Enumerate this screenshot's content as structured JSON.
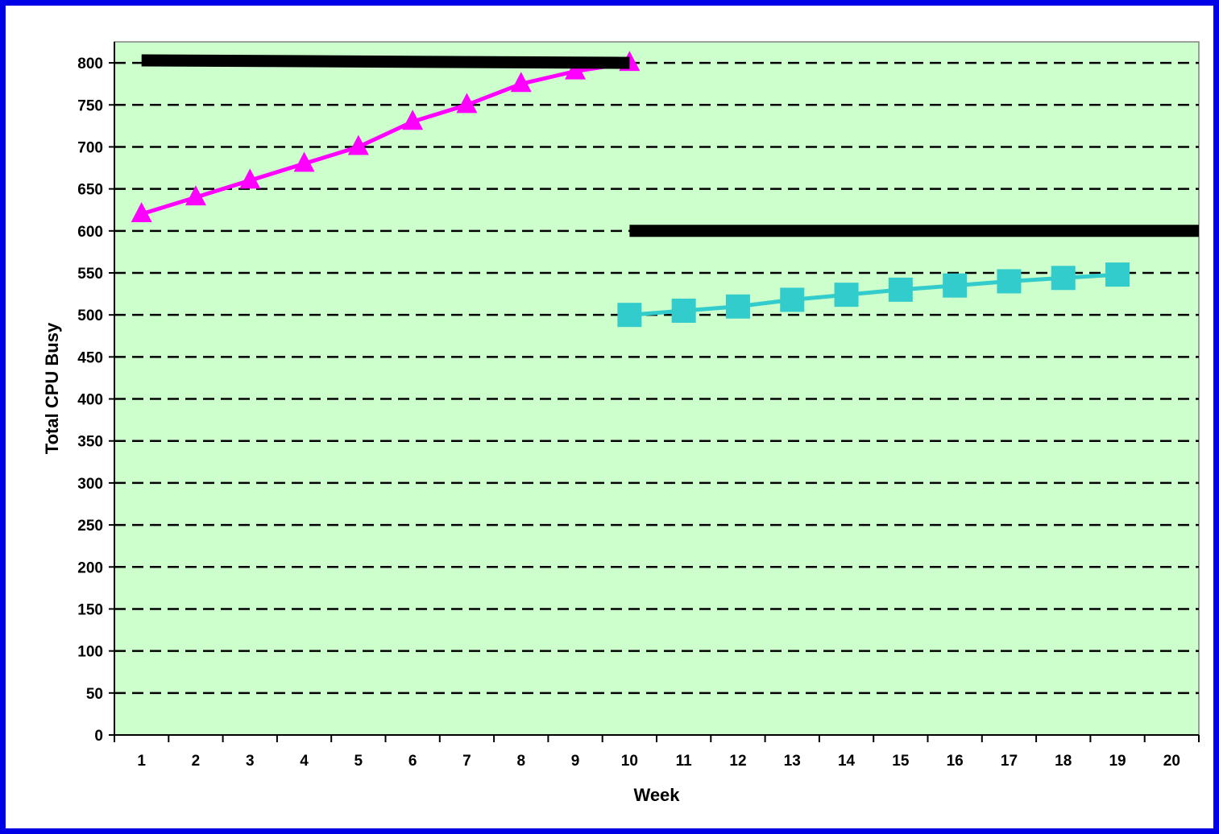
{
  "chart_data": {
    "type": "line",
    "title": "",
    "xlabel": "Week",
    "ylabel": "Total CPU Busy",
    "x": [
      1,
      2,
      3,
      4,
      5,
      6,
      7,
      8,
      9,
      10,
      11,
      12,
      13,
      14,
      15,
      16,
      17,
      18,
      19,
      20
    ],
    "xlim": [
      0.5,
      20.5
    ],
    "ylim": [
      0,
      825
    ],
    "yticks": [
      0,
      50,
      100,
      150,
      200,
      250,
      300,
      350,
      400,
      450,
      500,
      550,
      600,
      650,
      700,
      750,
      800
    ],
    "grid": "horizontal dashed",
    "legend": "none",
    "plot_background": "#ccffcc",
    "series": [
      {
        "marker": "triangle",
        "color": "#ff00ff",
        "x": [
          1,
          2,
          3,
          4,
          5,
          6,
          7,
          8,
          9,
          10
        ],
        "values": [
          620,
          640,
          660,
          680,
          700,
          730,
          750,
          775,
          790,
          800
        ]
      },
      {
        "marker": "square",
        "color": "#33cccc",
        "x": [
          10,
          11,
          12,
          13,
          14,
          15,
          16,
          17,
          18,
          19
        ],
        "values": [
          500,
          505,
          510,
          518,
          524,
          530,
          535,
          540,
          544,
          548
        ]
      },
      {
        "marker": "none",
        "color": "#000000",
        "x": [
          1,
          10
        ],
        "values": [
          803,
          800
        ]
      },
      {
        "marker": "none",
        "color": "#000000",
        "x": [
          10,
          20.5
        ],
        "values": [
          600,
          600
        ]
      }
    ]
  }
}
